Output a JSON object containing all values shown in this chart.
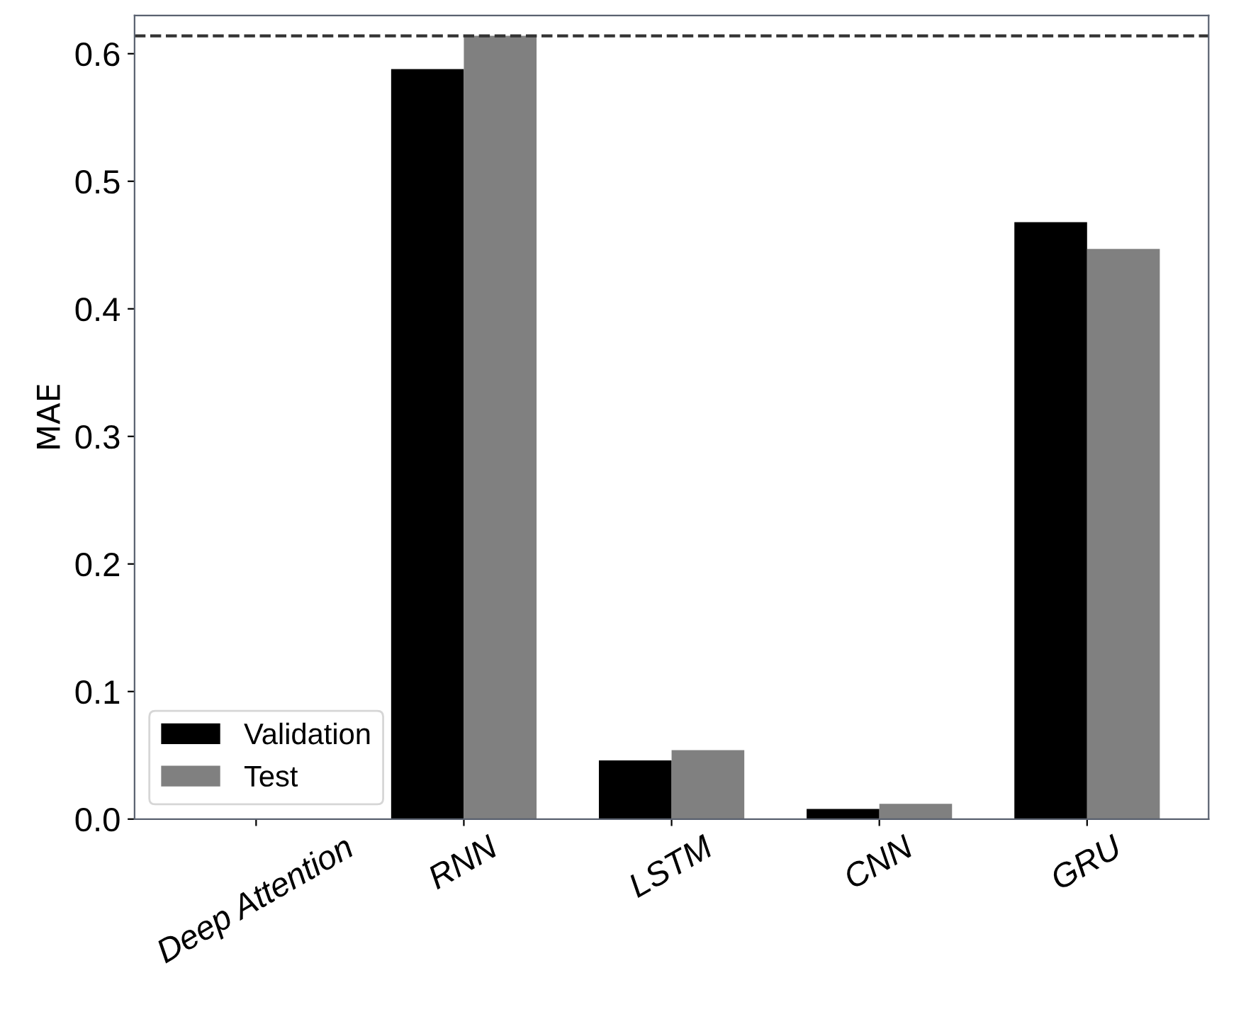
{
  "chart_data": {
    "type": "bar",
    "ylabel": "MAE",
    "categories": [
      "Deep Attention",
      "RNN",
      "LSTM",
      "CNN",
      "GRU"
    ],
    "series": [
      {
        "name": "Validation",
        "color": "#000000",
        "values": [
          0,
          0.588,
          0.046,
          0.008,
          0.468
        ]
      },
      {
        "name": "Test",
        "color": "#808080",
        "values": [
          0,
          0.614,
          0.054,
          0.012,
          0.447
        ]
      }
    ],
    "ylim": [
      0,
      0.63
    ],
    "yticks": [
      {
        "value": 0,
        "label": "0.0"
      },
      0.1,
      0.2,
      0.3,
      0.4,
      0.5,
      0.6
    ],
    "ref_lines": [
      {
        "axis": "y",
        "value": 0.614,
        "color": "#333333",
        "line_style": "dashed"
      }
    ],
    "legend": "bottom left",
    "grid": false
  }
}
